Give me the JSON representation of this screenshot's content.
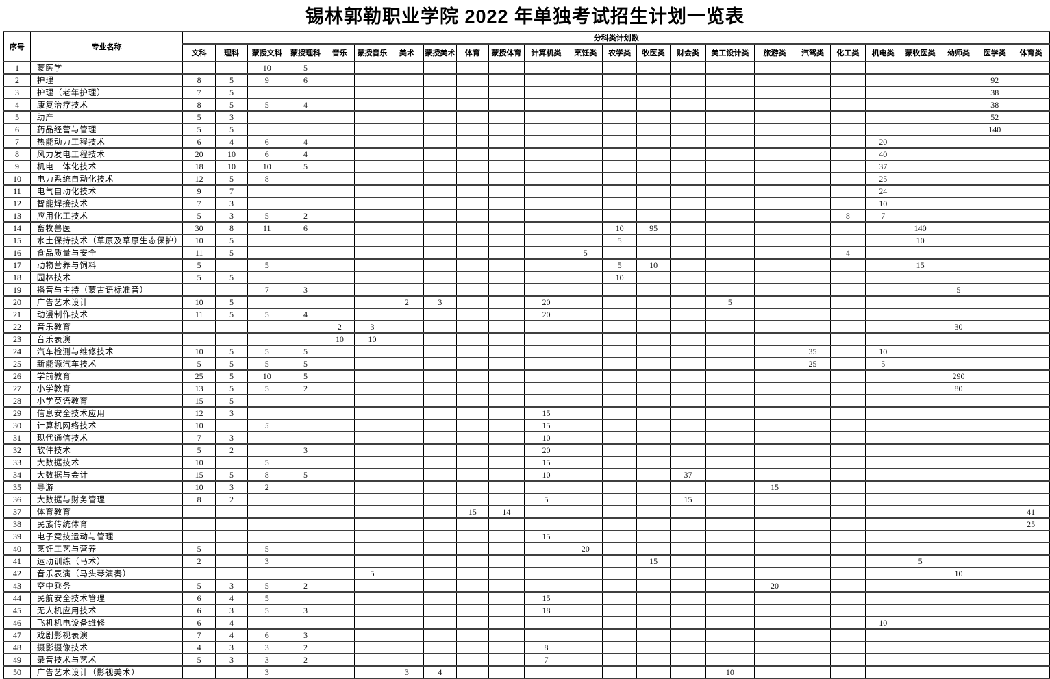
{
  "title": "锡林郭勒职业学院 2022 年单独考试招生计划一览表",
  "table": {
    "corner_headers": {
      "seq": "序号",
      "major": "专业名称"
    },
    "group_header": "分科类计划数",
    "categories": [
      "文科",
      "理科",
      "蒙授文科",
      "蒙授理科",
      "音乐",
      "蒙授音乐",
      "美术",
      "蒙授美术",
      "体育",
      "蒙授体育",
      "计算机类",
      "烹饪类",
      "农学类",
      "牧医类",
      "财会类",
      "美工设计类",
      "旅游类",
      "汽驾类",
      "化工类",
      "机电类",
      "蒙牧医类",
      "幼师类",
      "医学类",
      "体育类"
    ],
    "rows": [
      {
        "seq": "1",
        "major": "蒙医学",
        "values": {
          "蒙授文科": "10",
          "蒙授理科": "5"
        }
      },
      {
        "seq": "2",
        "major": "护理",
        "values": {
          "文科": "8",
          "理科": "5",
          "蒙授文科": "9",
          "蒙授理科": "6",
          "医学类": "92"
        }
      },
      {
        "seq": "3",
        "major": "护理（老年护理）",
        "values": {
          "文科": "7",
          "理科": "5",
          "医学类": "38"
        }
      },
      {
        "seq": "4",
        "major": "康复治疗技术",
        "values": {
          "文科": "8",
          "理科": "5",
          "蒙授文科": "5",
          "蒙授理科": "4",
          "医学类": "38"
        }
      },
      {
        "seq": "5",
        "major": "助产",
        "values": {
          "文科": "5",
          "理科": "3",
          "医学类": "52"
        }
      },
      {
        "seq": "6",
        "major": "药品经营与管理",
        "values": {
          "文科": "5",
          "理科": "5",
          "医学类": "140"
        }
      },
      {
        "seq": "7",
        "major": "热能动力工程技术",
        "values": {
          "文科": "6",
          "理科": "4",
          "蒙授文科": "6",
          "蒙授理科": "4",
          "机电类": "20"
        }
      },
      {
        "seq": "8",
        "major": "风力发电工程技术",
        "values": {
          "文科": "20",
          "理科": "10",
          "蒙授文科": "6",
          "蒙授理科": "4",
          "机电类": "40"
        }
      },
      {
        "seq": "9",
        "major": "机电一体化技术",
        "values": {
          "文科": "18",
          "理科": "10",
          "蒙授文科": "10",
          "蒙授理科": "5",
          "机电类": "37"
        }
      },
      {
        "seq": "10",
        "major": "电力系统自动化技术",
        "values": {
          "文科": "12",
          "理科": "5",
          "蒙授文科": "8",
          "机电类": "25"
        }
      },
      {
        "seq": "11",
        "major": "电气自动化技术",
        "values": {
          "文科": "9",
          "理科": "7",
          "机电类": "24"
        }
      },
      {
        "seq": "12",
        "major": "智能焊接技术",
        "values": {
          "文科": "7",
          "理科": "3",
          "机电类": "10"
        }
      },
      {
        "seq": "13",
        "major": "应用化工技术",
        "values": {
          "文科": "5",
          "理科": "3",
          "蒙授文科": "5",
          "蒙授理科": "2",
          "化工类": "8",
          "机电类": "7"
        }
      },
      {
        "seq": "14",
        "major": "畜牧兽医",
        "values": {
          "文科": "30",
          "理科": "8",
          "蒙授文科": "11",
          "蒙授理科": "6",
          "农学类": "10",
          "牧医类": "95",
          "蒙牧医类": "140"
        }
      },
      {
        "seq": "15",
        "major": "水土保持技术（草原及草原生态保护）",
        "values": {
          "文科": "10",
          "理科": "5",
          "农学类": "5",
          "蒙牧医类": "10"
        }
      },
      {
        "seq": "16",
        "major": "食品质量与安全",
        "values": {
          "文科": "11",
          "理科": "5",
          "烹饪类": "5",
          "化工类": "4"
        }
      },
      {
        "seq": "17",
        "major": "动物营养与饲料",
        "values": {
          "文科": "5",
          "蒙授文科": "5",
          "农学类": "5",
          "牧医类": "10",
          "蒙牧医类": "15"
        }
      },
      {
        "seq": "18",
        "major": "园林技术",
        "values": {
          "文科": "5",
          "理科": "5",
          "农学类": "10"
        }
      },
      {
        "seq": "19",
        "major": "播音与主持（蒙古语标准音）",
        "values": {
          "蒙授文科": "7",
          "蒙授理科": "3",
          "幼师类": "5"
        }
      },
      {
        "seq": "20",
        "major": "广告艺术设计",
        "values": {
          "文科": "10",
          "理科": "5",
          "美术": "2",
          "蒙授美术": "3",
          "计算机类": "20",
          "美工设计类": "5"
        }
      },
      {
        "seq": "21",
        "major": "动漫制作技术",
        "values": {
          "文科": "11",
          "理科": "5",
          "蒙授文科": "5",
          "蒙授理科": "4",
          "计算机类": "20"
        }
      },
      {
        "seq": "22",
        "major": "音乐教育",
        "values": {
          "音乐": "2",
          "蒙授音乐": "3",
          "幼师类": "30"
        }
      },
      {
        "seq": "23",
        "major": "音乐表演",
        "values": {
          "音乐": "10",
          "蒙授音乐": "10"
        }
      },
      {
        "seq": "24",
        "major": "汽车检测与维修技术",
        "values": {
          "文科": "10",
          "理科": "5",
          "蒙授文科": "5",
          "蒙授理科": "5",
          "汽驾类": "35",
          "机电类": "10"
        }
      },
      {
        "seq": "25",
        "major": "新能源汽车技术",
        "values": {
          "文科": "5",
          "理科": "5",
          "蒙授文科": "5",
          "蒙授理科": "5",
          "汽驾类": "25",
          "机电类": "5"
        }
      },
      {
        "seq": "26",
        "major": "学前教育",
        "values": {
          "文科": "25",
          "理科": "5",
          "蒙授文科": "10",
          "蒙授理科": "5",
          "幼师类": "290"
        }
      },
      {
        "seq": "27",
        "major": "小学教育",
        "values": {
          "文科": "13",
          "理科": "5",
          "蒙授文科": "5",
          "蒙授理科": "2",
          "幼师类": "80"
        }
      },
      {
        "seq": "28",
        "major": "小学英语教育",
        "values": {
          "文科": "15",
          "理科": "5"
        }
      },
      {
        "seq": "29",
        "major": "信息安全技术应用",
        "values": {
          "文科": "12",
          "理科": "3",
          "计算机类": "15"
        }
      },
      {
        "seq": "30",
        "major": "计算机网络技术",
        "values": {
          "文科": "10",
          "蒙授文科": "5",
          "计算机类": "15"
        },
        "italic": [
          "蒙授文科"
        ]
      },
      {
        "seq": "31",
        "major": "现代通信技术",
        "values": {
          "文科": "7",
          "理科": "3",
          "计算机类": "10"
        }
      },
      {
        "seq": "32",
        "major": "软件技术",
        "values": {
          "文科": "5",
          "理科": "2",
          "蒙授理科": "3",
          "计算机类": "20"
        }
      },
      {
        "seq": "33",
        "major": "大数据技术",
        "values": {
          "文科": "10",
          "蒙授文科": "5",
          "计算机类": "15"
        }
      },
      {
        "seq": "34",
        "major": "大数据与会计",
        "values": {
          "文科": "15",
          "理科": "5",
          "蒙授文科": "8",
          "蒙授理科": "5",
          "计算机类": "10",
          "财会类": "37"
        }
      },
      {
        "seq": "35",
        "major": "导游",
        "values": {
          "文科": "10",
          "理科": "3",
          "蒙授文科": "2",
          "旅游类": "15"
        }
      },
      {
        "seq": "36",
        "major": "大数据与财务管理",
        "values": {
          "文科": "8",
          "理科": "2",
          "计算机类": "5",
          "财会类": "15"
        }
      },
      {
        "seq": "37",
        "major": "体育教育",
        "values": {
          "体育": "15",
          "蒙授体育": "14",
          "体育类": "41"
        }
      },
      {
        "seq": "38",
        "major": "民族传统体育",
        "values": {
          "体育类": "25"
        }
      },
      {
        "seq": "39",
        "major": "电子竞技运动与管理",
        "values": {
          "计算机类": "15"
        }
      },
      {
        "seq": "40",
        "major": "烹饪工艺与营养",
        "values": {
          "文科": "5",
          "蒙授文科": "5",
          "烹饪类": "20"
        }
      },
      {
        "seq": "41",
        "major": "运动训练（马术）",
        "values": {
          "文科": "2",
          "蒙授文科": "3",
          "牧医类": "15",
          "蒙牧医类": "5"
        }
      },
      {
        "seq": "42",
        "major": "音乐表演（马头琴演奏）",
        "values": {
          "蒙授音乐": "5",
          "幼师类": "10"
        }
      },
      {
        "seq": "43",
        "major": "空中乘务",
        "values": {
          "文科": "5",
          "理科": "3",
          "蒙授文科": "5",
          "蒙授理科": "2",
          "旅游类": "20"
        }
      },
      {
        "seq": "44",
        "major": "民航安全技术管理",
        "values": {
          "文科": "6",
          "理科": "4",
          "蒙授文科": "5",
          "计算机类": "15"
        }
      },
      {
        "seq": "45",
        "major": "无人机应用技术",
        "values": {
          "文科": "6",
          "理科": "3",
          "蒙授文科": "5",
          "蒙授理科": "3",
          "计算机类": "18"
        }
      },
      {
        "seq": "46",
        "major": "飞机机电设备维修",
        "values": {
          "文科": "6",
          "理科": "4",
          "机电类": "10"
        }
      },
      {
        "seq": "47",
        "major": "戏剧影视表演",
        "values": {
          "文科": "7",
          "理科": "4",
          "蒙授文科": "6",
          "蒙授理科": "3"
        }
      },
      {
        "seq": "48",
        "major": "摄影摄像技术",
        "values": {
          "文科": "4",
          "理科": "3",
          "蒙授文科": "3",
          "蒙授理科": "2",
          "计算机类": "8"
        }
      },
      {
        "seq": "49",
        "major": "录音技术与艺术",
        "values": {
          "文科": "5",
          "理科": "3",
          "蒙授文科": "3",
          "蒙授理科": "2",
          "计算机类": "7"
        }
      },
      {
        "seq": "50",
        "major": "广告艺术设计（影视美术）",
        "values": {
          "蒙授文科": "3",
          "美术": "3",
          "蒙授美术": "4",
          "美工设计类": "10"
        }
      }
    ]
  }
}
